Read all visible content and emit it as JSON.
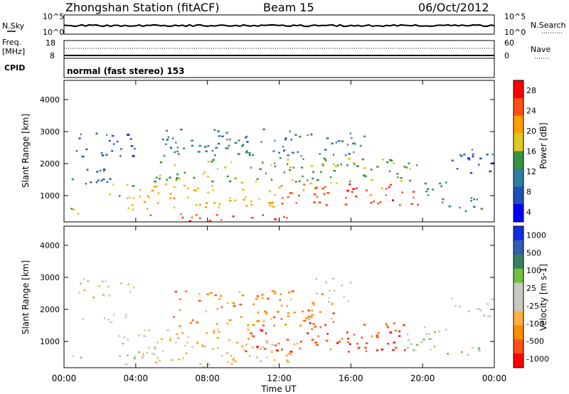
{
  "header": {
    "station_title": "Zhongshan Station (fitACF)",
    "beam_label": "Beam 15",
    "date_label": "06/Oct/2012"
  },
  "top_panel": {
    "left_label": "N.Sky",
    "right_label": "N.Search",
    "left_ticks": [
      "10^5",
      "10^0"
    ],
    "right_ticks": [
      "10^5",
      "10^0"
    ]
  },
  "freq_panel": {
    "left_label_line1": "Freq.",
    "left_label_line2": "[MHz]",
    "left_ticks": [
      "18",
      "8"
    ],
    "right_label": "Nave",
    "right_ticks": [
      "60",
      "0"
    ]
  },
  "cpid_panel": {
    "label": "CPID",
    "mode_text": "normal (fast stereo) 153"
  },
  "x_axis": {
    "ticks": [
      "00:00",
      "04:00",
      "08:00",
      "12:00",
      "16:00",
      "20:00",
      "00:00"
    ],
    "label": "Time UT"
  },
  "chart_data": [
    {
      "type": "heatmap",
      "title": "",
      "ylabel": "Slant Range [km]",
      "xlabel": "",
      "x_range_hours": [
        0,
        24
      ],
      "ylim": [
        180,
        4600
      ],
      "y_ticks": [
        1000,
        2000,
        3000,
        4000
      ],
      "colorbar": {
        "label": "Power [dB]",
        "tick_labels": [
          "28",
          "24",
          "20",
          "16",
          "12",
          "8",
          "4"
        ],
        "range": [
          0,
          30
        ],
        "colors": [
          "#0000ff",
          "#1f4fb8",
          "#2f7fa0",
          "#3a9040",
          "#e0c820",
          "#ffa000",
          "#ff5010",
          "#ff0000"
        ]
      },
      "regions": [
        {
          "t0": 0.0,
          "t1": 1.0,
          "r0": 220,
          "r1": 620,
          "v": 16
        },
        {
          "t0": 0.3,
          "t1": 3.0,
          "r0": 1300,
          "r1": 1900,
          "v": 7
        },
        {
          "t0": 0.5,
          "t1": 4.0,
          "r0": 2200,
          "r1": 3000,
          "v": 6
        },
        {
          "t0": 2.5,
          "t1": 4.0,
          "r0": 500,
          "r1": 1400,
          "v": 16
        },
        {
          "t0": 4.0,
          "t1": 12.0,
          "r0": 600,
          "r1": 1400,
          "v": 20
        },
        {
          "t0": 4.0,
          "t1": 13.0,
          "r0": 220,
          "r1": 450,
          "v": 26
        },
        {
          "t0": 5.0,
          "t1": 20.0,
          "r0": 1400,
          "r1": 2200,
          "v": 14
        },
        {
          "t0": 5.0,
          "t1": 17.0,
          "r0": 2200,
          "r1": 3100,
          "v": 10
        },
        {
          "t0": 12.0,
          "t1": 20.0,
          "r0": 700,
          "r1": 1400,
          "v": 25
        },
        {
          "t0": 20.0,
          "t1": 21.5,
          "r0": 600,
          "r1": 1500,
          "v": 12
        },
        {
          "t0": 21.5,
          "t1": 24.0,
          "r0": 1700,
          "r1": 2500,
          "v": 6
        },
        {
          "t0": 22.0,
          "t1": 24.0,
          "r0": 500,
          "r1": 1000,
          "v": 9
        }
      ]
    },
    {
      "type": "heatmap",
      "title": "",
      "ylabel": "Slant Range [km]",
      "xlabel": "Time UT",
      "x_range_hours": [
        0,
        24
      ],
      "ylim": [
        180,
        4600
      ],
      "y_ticks": [
        1000,
        2000,
        3000,
        4000
      ],
      "colorbar": {
        "label": "Velocity [m s-1]",
        "tick_labels": [
          "1000",
          "500",
          "100",
          "25",
          "-25",
          "-100",
          "-500",
          "-1000"
        ],
        "range": [
          -1200,
          1200
        ],
        "colors": [
          "#ff0000",
          "#ff5010",
          "#ff8c00",
          "#ffb040",
          "#c8c8c0",
          "#c8c8c0",
          "#70c040",
          "#3a8060",
          "#2f5fb0",
          "#1030e0"
        ]
      },
      "regions": [
        {
          "t0": 0.0,
          "t1": 1.0,
          "r0": 220,
          "r1": 600,
          "v": 150
        },
        {
          "t0": 0.2,
          "t1": 3.5,
          "r0": 1600,
          "r1": 1900,
          "v": 0
        },
        {
          "t0": 0.8,
          "t1": 4.0,
          "r0": 2400,
          "r1": 3000,
          "v": -200
        },
        {
          "t0": 3.0,
          "t1": 4.5,
          "r0": 300,
          "r1": 1200,
          "v": 100
        },
        {
          "t0": 4.0,
          "t1": 13.0,
          "r0": 220,
          "r1": 1400,
          "v": -300
        },
        {
          "t0": 6.0,
          "t1": 15.0,
          "r0": 1400,
          "r1": 2600,
          "v": -600
        },
        {
          "t0": 10.0,
          "t1": 19.0,
          "r0": 700,
          "r1": 1600,
          "v": -900
        },
        {
          "t0": 14.0,
          "t1": 16.0,
          "r0": 2200,
          "r1": 3000,
          "v": 0
        },
        {
          "t0": 19.0,
          "t1": 21.5,
          "r0": 600,
          "r1": 1500,
          "v": 200
        },
        {
          "t0": 21.5,
          "t1": 24.0,
          "r0": 1800,
          "r1": 2400,
          "v": 0
        },
        {
          "t0": 22.0,
          "t1": 23.5,
          "r0": 400,
          "r1": 900,
          "v": 200
        }
      ]
    }
  ]
}
